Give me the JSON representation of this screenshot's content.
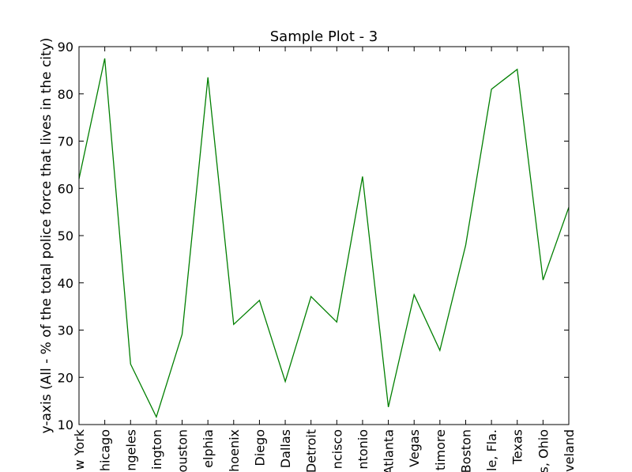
{
  "chart_data": {
    "type": "line",
    "title": "Sample Plot - 3",
    "xlabel": "",
    "ylabel": "y-axis (All - % of the total police force that lives in the city)",
    "categories": [
      "w York",
      "hicago",
      "ngeles",
      "ington",
      "ouston",
      "elphia",
      "hoenix",
      "Diego",
      "Dallas",
      "Detroit",
      "ncisco",
      "ntonio",
      "Atlanta",
      "Vegas",
      "timore",
      "Boston",
      "le, Fla.",
      "Texas",
      "s, Ohio",
      "veland"
    ],
    "series": [
      {
        "values": [
          62,
          87.5,
          22.8,
          11.6,
          29.1,
          83.5,
          31.2,
          36.3,
          19.1,
          37.1,
          31.7,
          62.5,
          13.7,
          37.5,
          25.7,
          48,
          81,
          85.2,
          40.6,
          56
        ]
      }
    ],
    "ylim": [
      10,
      90
    ],
    "yticks": [
      "10",
      "20",
      "30",
      "40",
      "50",
      "60",
      "70",
      "80",
      "90"
    ],
    "grid": false,
    "line_color": "#007f00"
  }
}
